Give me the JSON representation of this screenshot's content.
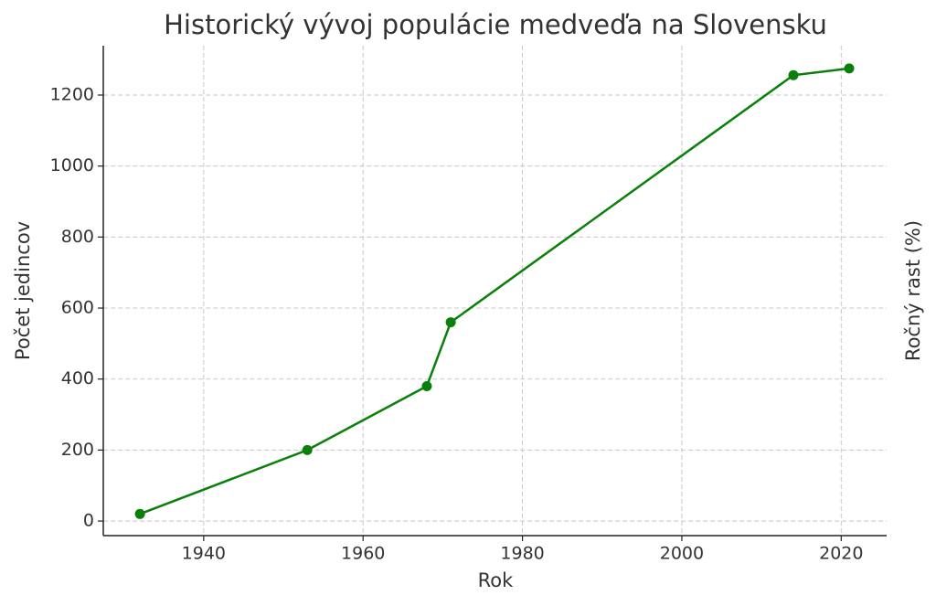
{
  "chart_data": {
    "type": "line",
    "title": "Historický vývoj populácie medveďa na Slovensku",
    "xlabel": "Rok",
    "ylabel": "Počet jedincov",
    "y2label": "Ročný rast (%)",
    "x": [
      1932,
      1953,
      1968,
      1971,
      2014,
      2021
    ],
    "series": [
      {
        "name": "Počet jedincov",
        "color": "#0a800a",
        "values": [
          20,
          200,
          380,
          560,
          1256,
          1275
        ]
      }
    ],
    "xlim": [
      1927.4,
      2025.7
    ],
    "xticks": [
      1940,
      1960,
      1980,
      2000,
      2020
    ],
    "ylim": [
      -41,
      1339
    ],
    "yticks": [
      0,
      200,
      400,
      600,
      800,
      1000,
      1200
    ],
    "grid": true,
    "legend": false
  }
}
